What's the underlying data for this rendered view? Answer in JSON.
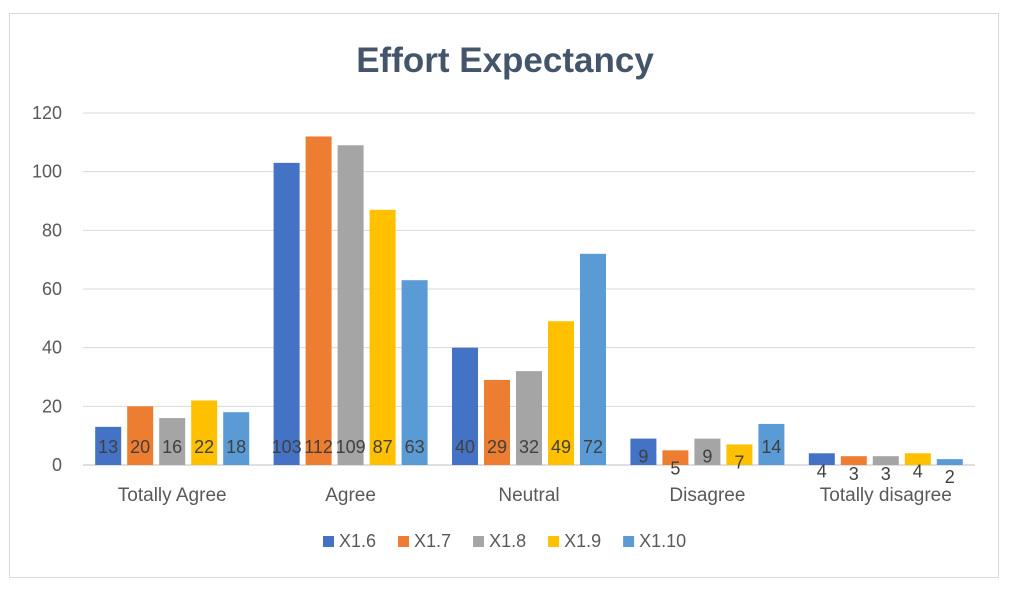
{
  "chart_data": {
    "type": "bar",
    "title": "Effort Expectancy",
    "xlabel": "",
    "ylabel": "",
    "categories": [
      "Totally Agree",
      "Agree",
      "Neutral",
      "Disagree",
      "Totally disagree"
    ],
    "yticks": [
      "0",
      "20",
      "40",
      "60",
      "80",
      "100",
      "120"
    ],
    "ylim": [
      0,
      120
    ],
    "grid": true,
    "legend_position": "bottom",
    "series": [
      {
        "name": "X1.6",
        "color": "#4472c4",
        "values": [
          13,
          103,
          40,
          9,
          4
        ]
      },
      {
        "name": "X1.7",
        "color": "#ed7d31",
        "values": [
          20,
          112,
          29,
          5,
          3
        ]
      },
      {
        "name": "X1.8",
        "color": "#a5a5a5",
        "values": [
          16,
          109,
          32,
          9,
          3
        ]
      },
      {
        "name": "X1.9",
        "color": "#ffc000",
        "values": [
          22,
          87,
          49,
          7,
          4
        ]
      },
      {
        "name": "X1.10",
        "color": "#5b9bd5",
        "values": [
          18,
          63,
          72,
          14,
          2
        ]
      }
    ]
  }
}
